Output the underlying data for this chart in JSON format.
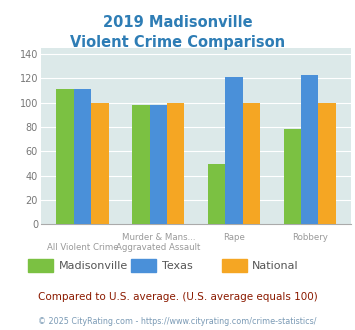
{
  "title_line1": "2019 Madisonville",
  "title_line2": "Violent Crime Comparison",
  "series": {
    "Madisonville": [
      111,
      98,
      50,
      78
    ],
    "Texas": [
      111,
      98,
      121,
      123
    ],
    "National": [
      100,
      100,
      100,
      100
    ]
  },
  "colors": {
    "Madisonville": "#7bc142",
    "Texas": "#4a90d9",
    "National": "#f5a623"
  },
  "ylim": [
    0,
    145
  ],
  "yticks": [
    0,
    20,
    40,
    60,
    80,
    100,
    120,
    140
  ],
  "background_color": "#dce9e9",
  "title_color": "#2e7db5",
  "footer_text": "Compared to U.S. average. (U.S. average equals 100)",
  "footer_color": "#8b1a00",
  "credit_text": "© 2025 CityRating.com - https://www.cityrating.com/crime-statistics/",
  "credit_color": "#7a9ab5"
}
